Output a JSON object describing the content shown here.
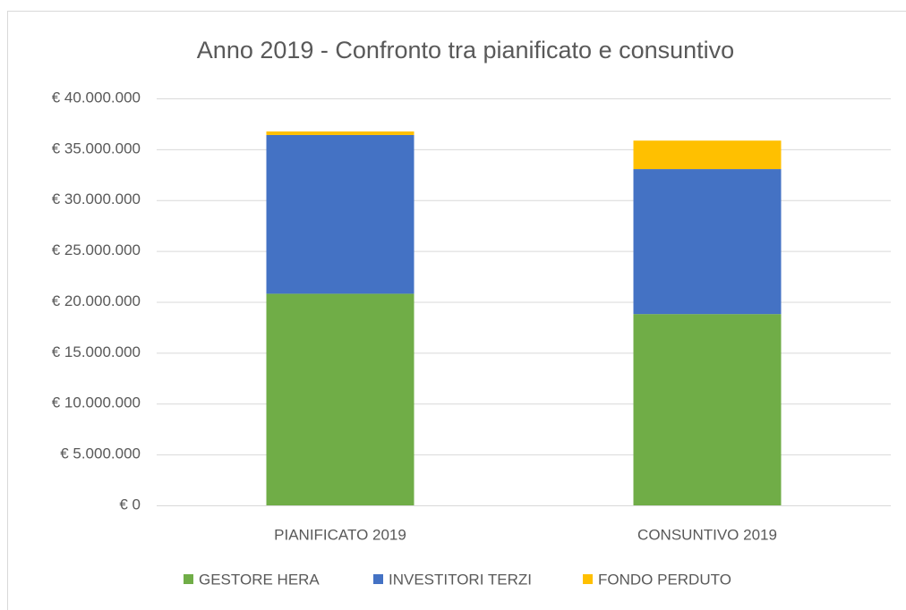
{
  "chart_data": {
    "type": "stacked_bar",
    "title": "Anno 2019 - Confronto tra pianificato e consuntivo",
    "categories": [
      "PIANIFICATO 2019",
      "CONSUNTIVO 2019"
    ],
    "series": [
      {
        "name": "GESTORE HERA",
        "color": "#70ad47",
        "values": [
          20800000,
          18800000
        ]
      },
      {
        "name": "INVESTITORI TERZI",
        "color": "#4472c4",
        "values": [
          15600000,
          14250000
        ]
      },
      {
        "name": "FONDO PERDUTO",
        "color": "#ffc000",
        "values": [
          350000,
          2800000
        ]
      }
    ],
    "ylim": [
      0,
      40000000
    ],
    "yticks": [
      {
        "value": 0,
        "label": "€ 0"
      },
      {
        "value": 5000000,
        "label": "€ 5.000.000"
      },
      {
        "value": 10000000,
        "label": "€ 10.000.000"
      },
      {
        "value": 15000000,
        "label": "€ 15.000.000"
      },
      {
        "value": 20000000,
        "label": "€ 20.000.000"
      },
      {
        "value": 25000000,
        "label": "€ 25.000.000"
      },
      {
        "value": 30000000,
        "label": "€ 30.000.000"
      },
      {
        "value": 35000000,
        "label": "€ 35.000.000"
      },
      {
        "value": 40000000,
        "label": "€ 40.000.000"
      }
    ],
    "grid": true,
    "legend": "bottom"
  }
}
